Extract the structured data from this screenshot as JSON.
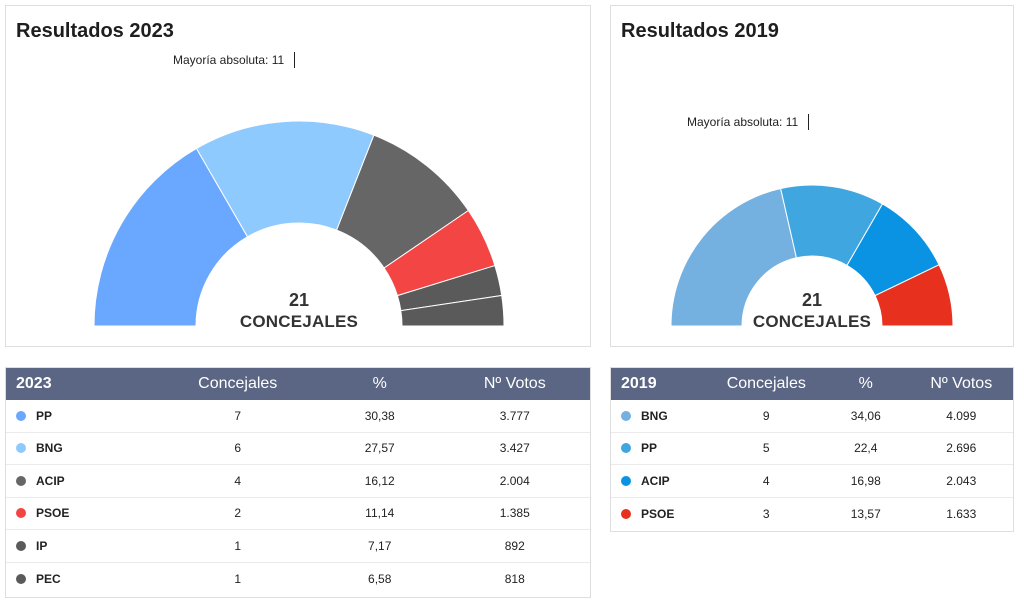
{
  "majority_label": "Mayoría absoluta: 11",
  "total_seats": "21",
  "center_text": "CONCEJALES",
  "panel_2023": {
    "title": "Resultados 2023",
    "table_header": {
      "year": "2023",
      "seats": "Concejales",
      "pct": "%",
      "votes": "Nº Votos"
    },
    "rows": [
      {
        "party": "PP",
        "color": "#6aa8ff",
        "seats": "7",
        "pct": "30,38",
        "votes": "3.777"
      },
      {
        "party": "BNG",
        "color": "#8fcaff",
        "seats": "6",
        "pct": "27,57",
        "votes": "3.427"
      },
      {
        "party": "ACIP",
        "color": "#666666",
        "seats": "4",
        "pct": "16,12",
        "votes": "2.004"
      },
      {
        "party": "PSOE",
        "color": "#f44545",
        "seats": "2",
        "pct": "11,14",
        "votes": "1.385"
      },
      {
        "party": "IP",
        "color": "#5a5a5a",
        "seats": "1",
        "pct": "7,17",
        "votes": "892"
      },
      {
        "party": "PEC",
        "color": "#5a5a5a",
        "seats": "1",
        "pct": "6,58",
        "votes": "818"
      }
    ]
  },
  "panel_2019": {
    "title": "Resultados 2019",
    "table_header": {
      "year": "2019",
      "seats": "Concejales",
      "pct": "%",
      "votes": "Nº Votos"
    },
    "rows": [
      {
        "party": "BNG",
        "color": "#74b0e0",
        "seats": "9",
        "pct": "34,06",
        "votes": "4.099"
      },
      {
        "party": "PP",
        "color": "#3fa6e0",
        "seats": "5",
        "pct": "22,4",
        "votes": "2.696"
      },
      {
        "party": "ACIP",
        "color": "#0a93e3",
        "seats": "4",
        "pct": "16,98",
        "votes": "2.043"
      },
      {
        "party": "PSOE",
        "color": "#e8301e",
        "seats": "3",
        "pct": "13,57",
        "votes": "1.633"
      }
    ]
  },
  "chart_data": [
    {
      "type": "pie",
      "title": "Resultados 2023",
      "variant": "semicircle",
      "categories": [
        "PP",
        "BNG",
        "ACIP",
        "PSOE",
        "IP",
        "PEC"
      ],
      "values": [
        7,
        6,
        4,
        2,
        1,
        1
      ],
      "colors": [
        "#6aa8ff",
        "#8fcaff",
        "#666666",
        "#f44545",
        "#5a5a5a",
        "#5a5a5a"
      ],
      "total": 21,
      "majority": 11
    },
    {
      "type": "pie",
      "title": "Resultados 2019",
      "variant": "semicircle",
      "categories": [
        "BNG",
        "PP",
        "ACIP",
        "PSOE"
      ],
      "values": [
        9,
        5,
        4,
        3
      ],
      "colors": [
        "#74b0e0",
        "#3fa6e0",
        "#0a93e3",
        "#e8301e"
      ],
      "total": 21,
      "majority": 11
    }
  ]
}
